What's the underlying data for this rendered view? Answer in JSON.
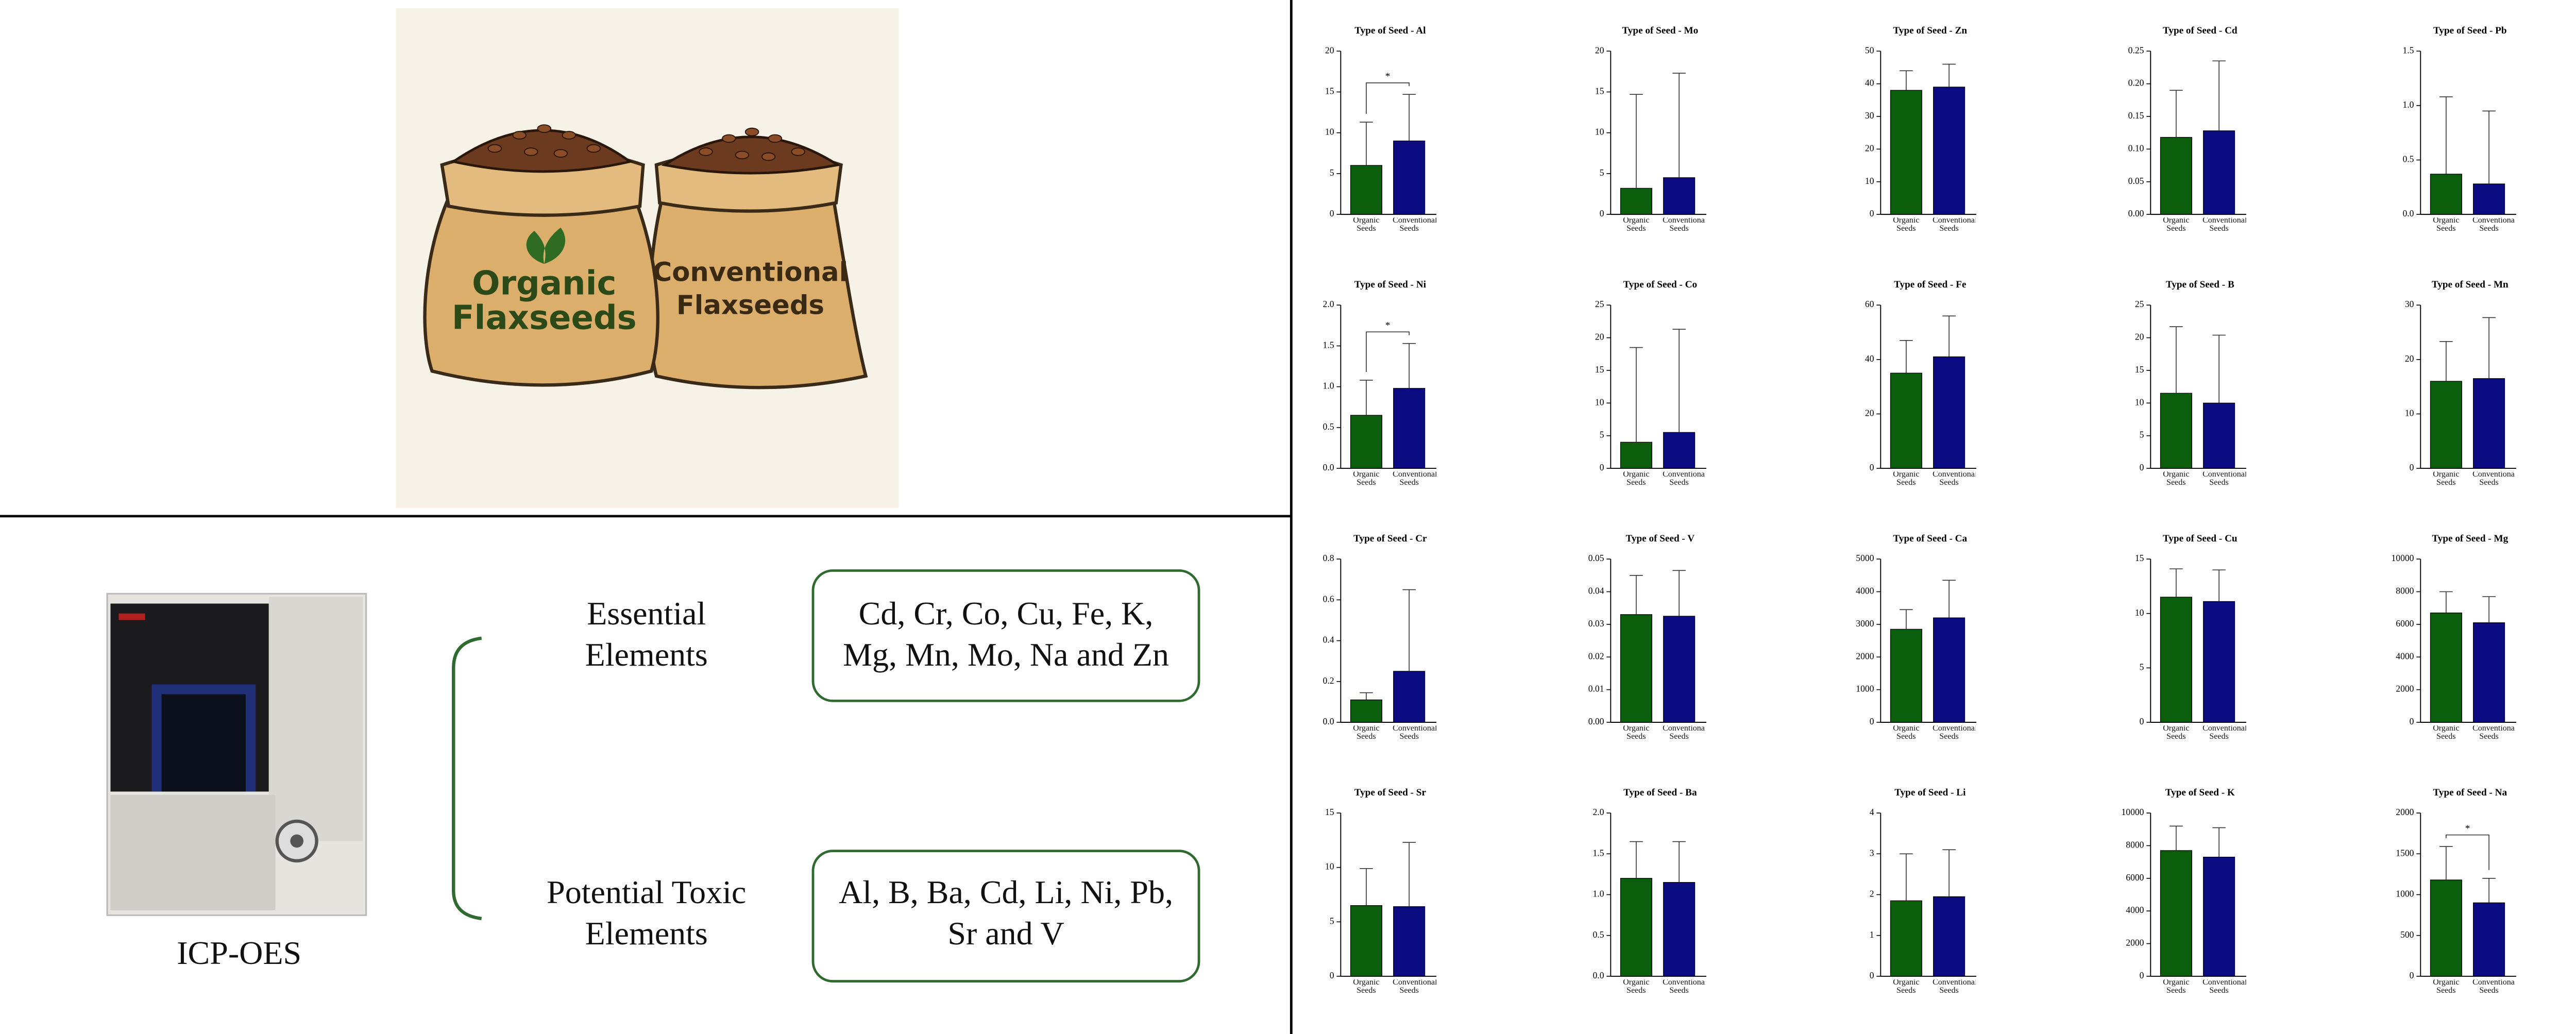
{
  "illustration": {
    "organic_bag": [
      "Organic",
      "Flaxseeds"
    ],
    "conventional_bag": [
      "Conventional",
      "Flaxseeds"
    ]
  },
  "instrument": {
    "label": "ICP-OES"
  },
  "groups": [
    {
      "name": [
        "Essential",
        "Elements"
      ],
      "elements": [
        "Cd, Cr, Co, Cu, Fe, K,",
        "Mg, Mn, Mo, Na and Zn"
      ]
    },
    {
      "name": [
        "Potential Toxic",
        "Elements"
      ],
      "elements": [
        "Al, B, Ba, Cd, Li, Ni, Pb,",
        "Sr and V"
      ]
    }
  ],
  "chart_data": [
    {
      "type": "bar",
      "title": "Type of Seed - Al",
      "categories": [
        "Organic Seeds",
        "Conventional Seeds"
      ],
      "values": [
        6,
        9
      ],
      "errors": [
        5.3,
        5.7
      ],
      "colors": [
        "#0b5e0b",
        "#0b0b82"
      ],
      "ylim": [
        0,
        20
      ],
      "yticks": [
        0,
        5,
        10,
        15,
        20
      ],
      "annotation": "*"
    },
    {
      "type": "bar",
      "title": "Type of Seed - Mo",
      "categories": [
        "Organic Seeds",
        "Conventional Seeds"
      ],
      "values": [
        3.2,
        4.5
      ],
      "errors": [
        11.5,
        12.8
      ],
      "colors": [
        "#0b5e0b",
        "#0b0b82"
      ],
      "ylim": [
        0,
        20
      ],
      "yticks": [
        0,
        5,
        10,
        15,
        20
      ]
    },
    {
      "type": "bar",
      "title": "Type of Seed - Zn",
      "categories": [
        "Organic Seeds",
        "Conventional Seeds"
      ],
      "values": [
        38,
        39
      ],
      "errors": [
        6,
        7
      ],
      "colors": [
        "#0b5e0b",
        "#0b0b82"
      ],
      "ylim": [
        0,
        50
      ],
      "yticks": [
        0,
        10,
        20,
        30,
        40,
        50
      ]
    },
    {
      "type": "bar",
      "title": "Type of Seed - Cd",
      "categories": [
        "Organic Seeds",
        "Conventional Seeds"
      ],
      "values": [
        0.118,
        0.128
      ],
      "errors": [
        0.072,
        0.107
      ],
      "colors": [
        "#0b5e0b",
        "#0b0b82"
      ],
      "ylim": [
        0,
        0.25
      ],
      "yticks": [
        {
          "value": 0,
          "label": "0.00"
        },
        0.05,
        {
          "value": 0.1,
          "label": "0.10"
        },
        0.15,
        {
          "value": 0.2,
          "label": "0.20"
        },
        0.25
      ]
    },
    {
      "type": "bar",
      "title": "Type of Seed - Pb",
      "categories": [
        "Organic Seeds",
        "Conventional Seeds"
      ],
      "values": [
        0.37,
        0.28
      ],
      "errors": [
        0.71,
        0.67
      ],
      "colors": [
        "#0b5e0b",
        "#0b0b82"
      ],
      "ylim": [
        0,
        1.5
      ],
      "yticks": [
        {
          "value": 0,
          "label": "0.0"
        },
        0.5,
        {
          "value": 1,
          "label": "1.0"
        },
        1.5
      ]
    },
    {
      "type": "bar",
      "title": "Type of Seed - Ni",
      "categories": [
        "Organic Seeds",
        "Conventional Seeds"
      ],
      "values": [
        0.65,
        0.98
      ],
      "errors": [
        0.43,
        0.55
      ],
      "colors": [
        "#0b5e0b",
        "#0b0b82"
      ],
      "ylim": [
        0,
        2
      ],
      "yticks": [
        {
          "value": 0,
          "label": "0.0"
        },
        0.5,
        {
          "value": 1,
          "label": "1.0"
        },
        1.5,
        {
          "value": 2,
          "label": "2.0"
        }
      ],
      "annotation": "*"
    },
    {
      "type": "bar",
      "title": "Type of Seed - Co",
      "categories": [
        "Organic Seeds",
        "Conventional Seeds"
      ],
      "values": [
        4,
        5.5
      ],
      "errors": [
        14.5,
        15.8
      ],
      "colors": [
        "#0b5e0b",
        "#0b0b82"
      ],
      "ylim": [
        0,
        25
      ],
      "yticks": [
        0,
        5,
        10,
        15,
        20,
        25
      ]
    },
    {
      "type": "bar",
      "title": "Type of Seed - Fe",
      "categories": [
        "Organic Seeds",
        "Conventional Seeds"
      ],
      "values": [
        35,
        41
      ],
      "errors": [
        12,
        15
      ],
      "colors": [
        "#0b5e0b",
        "#0b0b82"
      ],
      "ylim": [
        0,
        60
      ],
      "yticks": [
        0,
        20,
        40,
        60
      ]
    },
    {
      "type": "bar",
      "title": "Type of Seed - B",
      "categories": [
        "Organic Seeds",
        "Conventional Seeds"
      ],
      "values": [
        11.5,
        10
      ],
      "errors": [
        10.2,
        10.4
      ],
      "colors": [
        "#0b5e0b",
        "#0b0b82"
      ],
      "ylim": [
        0,
        25
      ],
      "yticks": [
        0,
        5,
        10,
        15,
        20,
        25
      ]
    },
    {
      "type": "bar",
      "title": "Type of Seed - Mn",
      "categories": [
        "Organic Seeds",
        "Conventional Seeds"
      ],
      "values": [
        16,
        16.5
      ],
      "errors": [
        7.3,
        11.2
      ],
      "colors": [
        "#0b5e0b",
        "#0b0b82"
      ],
      "ylim": [
        0,
        30
      ],
      "yticks": [
        0,
        10,
        20,
        30
      ]
    },
    {
      "type": "bar",
      "title": "Type of Seed - Cr",
      "categories": [
        "Organic Seeds",
        "Conventional Seeds"
      ],
      "values": [
        0.11,
        0.25
      ],
      "errors": [
        0.035,
        0.4
      ],
      "colors": [
        "#0b5e0b",
        "#0b0b82"
      ],
      "ylim": [
        0,
        0.8
      ],
      "yticks": [
        {
          "value": 0,
          "label": "0.0"
        },
        0.2,
        0.4,
        0.6,
        0.8
      ]
    },
    {
      "type": "bar",
      "title": "Type of Seed - V",
      "categories": [
        "Organic Seeds",
        "Conventional Seeds"
      ],
      "values": [
        0.033,
        0.0325
      ],
      "errors": [
        0.012,
        0.014
      ],
      "colors": [
        "#0b5e0b",
        "#0b0b82"
      ],
      "ylim": [
        0,
        0.05
      ],
      "yticks": [
        {
          "value": 0,
          "label": "0.00"
        },
        0.01,
        0.02,
        0.03,
        0.04,
        0.05
      ]
    },
    {
      "type": "bar",
      "title": "Type of Seed - Ca",
      "categories": [
        "Organic Seeds",
        "Conventional Seeds"
      ],
      "values": [
        2850,
        3200
      ],
      "errors": [
        600,
        1150
      ],
      "colors": [
        "#0b5e0b",
        "#0b0b82"
      ],
      "ylim": [
        0,
        5000
      ],
      "yticks": [
        0,
        1000,
        2000,
        3000,
        4000,
        5000
      ]
    },
    {
      "type": "bar",
      "title": "Type of Seed - Cu",
      "categories": [
        "Organic Seeds",
        "Conventional Seeds"
      ],
      "values": [
        11.5,
        11.1
      ],
      "errors": [
        2.6,
        2.9
      ],
      "colors": [
        "#0b5e0b",
        "#0b0b82"
      ],
      "ylim": [
        0,
        15
      ],
      "yticks": [
        0,
        5,
        10,
        15
      ]
    },
    {
      "type": "bar",
      "title": "Type of Seed - Mg",
      "categories": [
        "Organic Seeds",
        "Conventional Seeds"
      ],
      "values": [
        6700,
        6100
      ],
      "errors": [
        1300,
        1600
      ],
      "colors": [
        "#0b5e0b",
        "#0b0b82"
      ],
      "ylim": [
        0,
        10000
      ],
      "yticks": [
        0,
        2000,
        4000,
        6000,
        8000,
        10000
      ]
    },
    {
      "type": "bar",
      "title": "Type of Seed - Sr",
      "categories": [
        "Organic Seeds",
        "Conventional Seeds"
      ],
      "values": [
        6.5,
        6.4
      ],
      "errors": [
        3.4,
        5.9
      ],
      "colors": [
        "#0b5e0b",
        "#0b0b82"
      ],
      "ylim": [
        0,
        15
      ],
      "yticks": [
        0,
        5,
        10,
        15
      ]
    },
    {
      "type": "bar",
      "title": "Type of Seed - Ba",
      "categories": [
        "Organic Seeds",
        "Conventional Seeds"
      ],
      "values": [
        1.2,
        1.15
      ],
      "errors": [
        0.45,
        0.5
      ],
      "colors": [
        "#0b5e0b",
        "#0b0b82"
      ],
      "ylim": [
        0,
        2
      ],
      "yticks": [
        {
          "value": 0,
          "label": "0.0"
        },
        0.5,
        {
          "value": 1,
          "label": "1.0"
        },
        1.5,
        {
          "value": 2,
          "label": "2.0"
        }
      ]
    },
    {
      "type": "bar",
      "title": "Type of Seed - Li",
      "categories": [
        "Organic Seeds",
        "Conventional Seeds"
      ],
      "values": [
        1.85,
        1.95
      ],
      "errors": [
        1.15,
        1.15
      ],
      "colors": [
        "#0b5e0b",
        "#0b0b82"
      ],
      "ylim": [
        0,
        4
      ],
      "yticks": [
        0,
        1,
        2,
        3,
        4
      ]
    },
    {
      "type": "bar",
      "title": "Type of Seed - K",
      "categories": [
        "Organic Seeds",
        "Conventional Seeds"
      ],
      "values": [
        7700,
        7300
      ],
      "errors": [
        1500,
        1800
      ],
      "colors": [
        "#0b5e0b",
        "#0b0b82"
      ],
      "ylim": [
        0,
        10000
      ],
      "yticks": [
        0,
        2000,
        4000,
        6000,
        8000,
        10000
      ]
    },
    {
      "type": "bar",
      "title": "Type of Seed - Na",
      "categories": [
        "Organic Seeds",
        "Conventional Seeds"
      ],
      "values": [
        1180,
        900
      ],
      "errors": [
        410,
        300
      ],
      "colors": [
        "#0b5e0b",
        "#0b0b82"
      ],
      "ylim": [
        0,
        2000
      ],
      "yticks": [
        0,
        500,
        1000,
        1500,
        2000
      ],
      "annotation": "*"
    }
  ]
}
